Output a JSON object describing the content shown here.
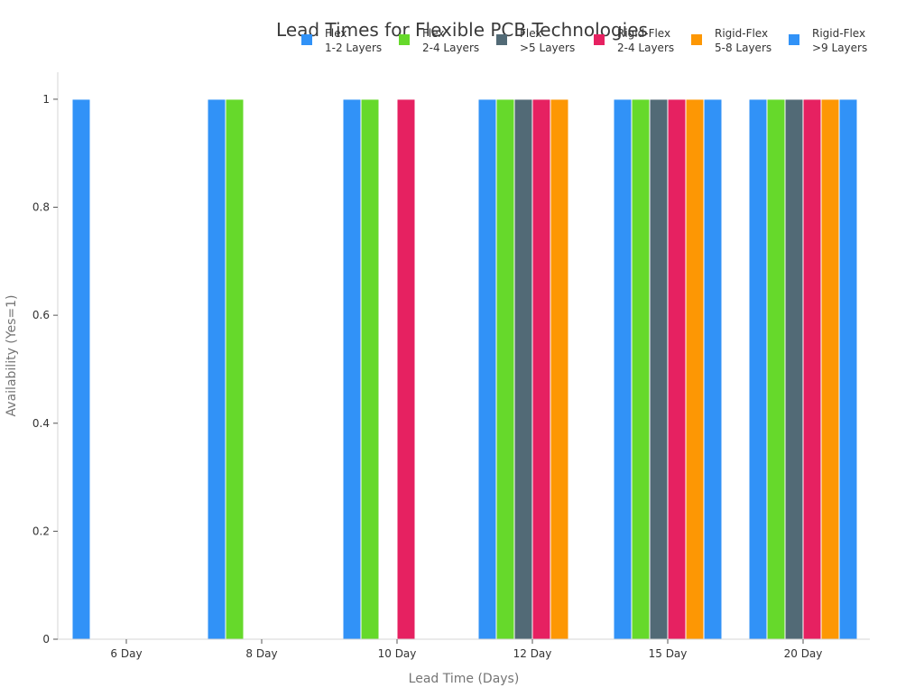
{
  "chart_data": {
    "type": "bar",
    "title": "Lead Times for Flexible PCB Technologies",
    "xlabel": "Lead Time (Days)",
    "ylabel": "Availability (Yes=1)",
    "categories": [
      "6 Day",
      "8 Day",
      "10 Day",
      "12 Day",
      "15 Day",
      "20 Day"
    ],
    "ylim": [
      0,
      1.05
    ],
    "yticks": [
      0,
      0.2,
      0.4,
      0.6,
      0.8,
      1
    ],
    "ytick_labels": [
      "0",
      "0.2",
      "0.4",
      "0.6",
      "0.8",
      "1"
    ],
    "grid": false,
    "legend_position": "top-right",
    "series": [
      {
        "name": "Flex\n1-2 Layers",
        "color": "#3192f7",
        "values": [
          1,
          1,
          1,
          1,
          1,
          1
        ]
      },
      {
        "name": "Flex\n2-4 Layers",
        "color": "#66d92b",
        "values": [
          0,
          1,
          1,
          1,
          1,
          1
        ]
      },
      {
        "name": "Flex\n>5 Layers",
        "color": "#526a76",
        "values": [
          0,
          0,
          0,
          1,
          1,
          1
        ]
      },
      {
        "name": "Rigid-Flex\n2-4 Layers",
        "color": "#e62161",
        "values": [
          0,
          0,
          1,
          1,
          1,
          1
        ]
      },
      {
        "name": "Rigid-Flex\n5-8 Layers",
        "color": "#fd9704",
        "values": [
          0,
          0,
          0,
          1,
          1,
          1
        ]
      },
      {
        "name": "Rigid-Flex\n>9 Layers",
        "color": "#3192f7",
        "values": [
          0,
          0,
          0,
          0,
          1,
          1
        ]
      }
    ]
  }
}
